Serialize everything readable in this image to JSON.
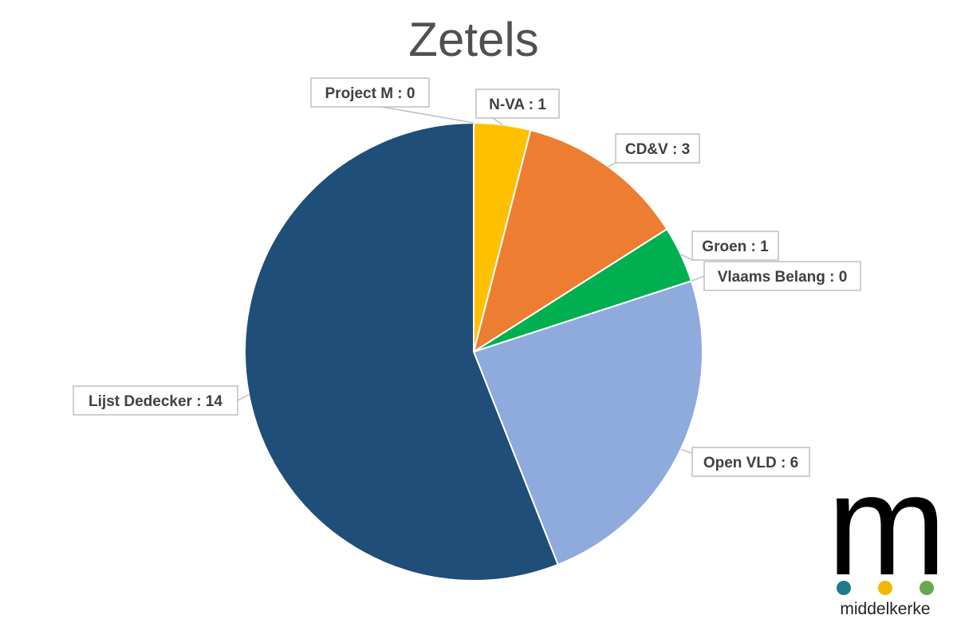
{
  "chart_data": {
    "type": "pie",
    "title": "Zetels",
    "slices": [
      {
        "label": "Project M",
        "value": 0,
        "data_label": "Project M : 0",
        "color": "#4472c4"
      },
      {
        "label": "N-VA",
        "value": 1,
        "data_label": "N-VA : 1",
        "color": "#ffc000"
      },
      {
        "label": "CD&V",
        "value": 3,
        "data_label": "CD&V : 3",
        "color": "#ed7d31"
      },
      {
        "label": "Groen",
        "value": 1,
        "data_label": "Groen : 1",
        "color": "#00b050"
      },
      {
        "label": "Vlaams Belang",
        "value": 0,
        "data_label": "Vlaams Belang : 0",
        "color": "#7f7f7f"
      },
      {
        "label": "Open VLD",
        "value": 6,
        "data_label": "Open VLD : 6",
        "color": "#8faadc"
      },
      {
        "label": "Lijst Dedecker",
        "value": 14,
        "data_label": "Lijst Dedecker : 14",
        "color": "#1f4e79"
      }
    ]
  },
  "logo": {
    "letter": "m",
    "name": "middelkerke",
    "dot_colors": [
      "#1f7a8c",
      "#f2b705",
      "#6aa84f"
    ]
  }
}
